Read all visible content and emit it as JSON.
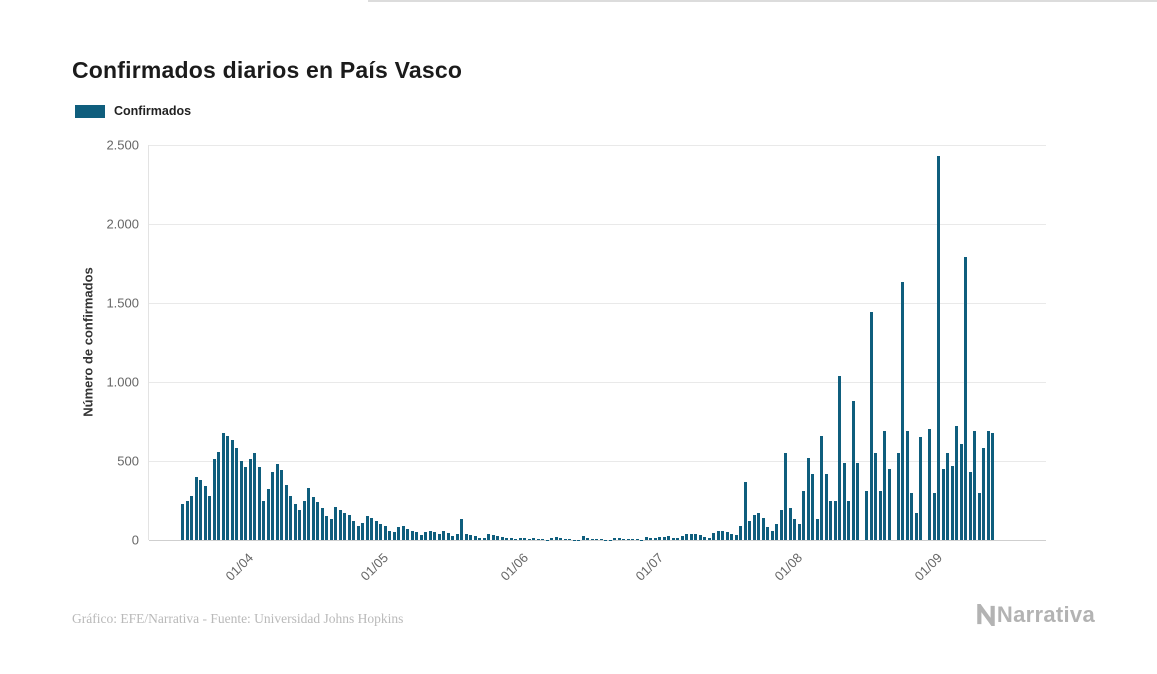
{
  "page": {
    "title": "Confirmados diarios en País Vasco",
    "footer_credit": "Gráfico: EFE/Narrativa - Fuente: Universidad Johns Hopkins",
    "brand": "Narrativa"
  },
  "legend": {
    "label": "Confirmados",
    "color": "#0f5e7d"
  },
  "chart_data": {
    "type": "bar",
    "title": "Confirmados diarios en País Vasco",
    "xlabel": "",
    "ylabel": "Número de confirmados",
    "ylim": [
      0,
      2500
    ],
    "grid": true,
    "legend_position": "top-left",
    "background": "#ffffff",
    "gridline_color": "#e9e9e9",
    "start_date": "18/03/2020",
    "y_ticks": [
      {
        "value": 0,
        "label": "0"
      },
      {
        "value": 500,
        "label": "500"
      },
      {
        "value": 1000,
        "label": "1.000"
      },
      {
        "value": 1500,
        "label": "1.500"
      },
      {
        "value": 2000,
        "label": "2.000"
      },
      {
        "value": 2500,
        "label": "2.500"
      }
    ],
    "x_ticks": [
      {
        "label": "01/04",
        "index": 14
      },
      {
        "label": "01/05",
        "index": 44
      },
      {
        "label": "01/06",
        "index": 75
      },
      {
        "label": "01/07",
        "index": 105
      },
      {
        "label": "01/08",
        "index": 136
      },
      {
        "label": "01/09",
        "index": 167
      }
    ],
    "series": [
      {
        "name": "Confirmados",
        "color": "#0f5e7d",
        "values": [
          230,
          250,
          280,
          400,
          380,
          340,
          280,
          510,
          560,
          680,
          660,
          630,
          580,
          500,
          460,
          510,
          550,
          460,
          250,
          320,
          430,
          480,
          440,
          350,
          280,
          230,
          190,
          250,
          330,
          270,
          240,
          200,
          150,
          130,
          210,
          190,
          170,
          160,
          120,
          90,
          110,
          150,
          140,
          120,
          100,
          90,
          60,
          50,
          80,
          90,
          70,
          60,
          50,
          30,
          50,
          60,
          50,
          40,
          55,
          45,
          25,
          35,
          130,
          40,
          30,
          25,
          15,
          10,
          35,
          30,
          25,
          20,
          15,
          10,
          8,
          10,
          15,
          8,
          12,
          6,
          4,
          2,
          10,
          18,
          12,
          8,
          5,
          3,
          2,
          25,
          12,
          8,
          6,
          5,
          3,
          2,
          14,
          10,
          8,
          6,
          8,
          4,
          2,
          16,
          12,
          14,
          18,
          22,
          28,
          15,
          10,
          25,
          35,
          40,
          35,
          30,
          20,
          15,
          45,
          55,
          60,
          50,
          40,
          30,
          90,
          370,
          120,
          160,
          170,
          140,
          80,
          60,
          100,
          190,
          550,
          200,
          130,
          100,
          310,
          520,
          420,
          130,
          660,
          420,
          250,
          250,
          1040,
          490,
          250,
          880,
          490,
          0,
          310,
          1440,
          550,
          310,
          690,
          450,
          0,
          550,
          1630,
          690,
          300,
          170,
          650,
          0,
          700,
          300,
          2430,
          450,
          550,
          470,
          720,
          610,
          1790,
          430,
          690,
          300,
          580,
          690,
          680
        ]
      }
    ]
  }
}
